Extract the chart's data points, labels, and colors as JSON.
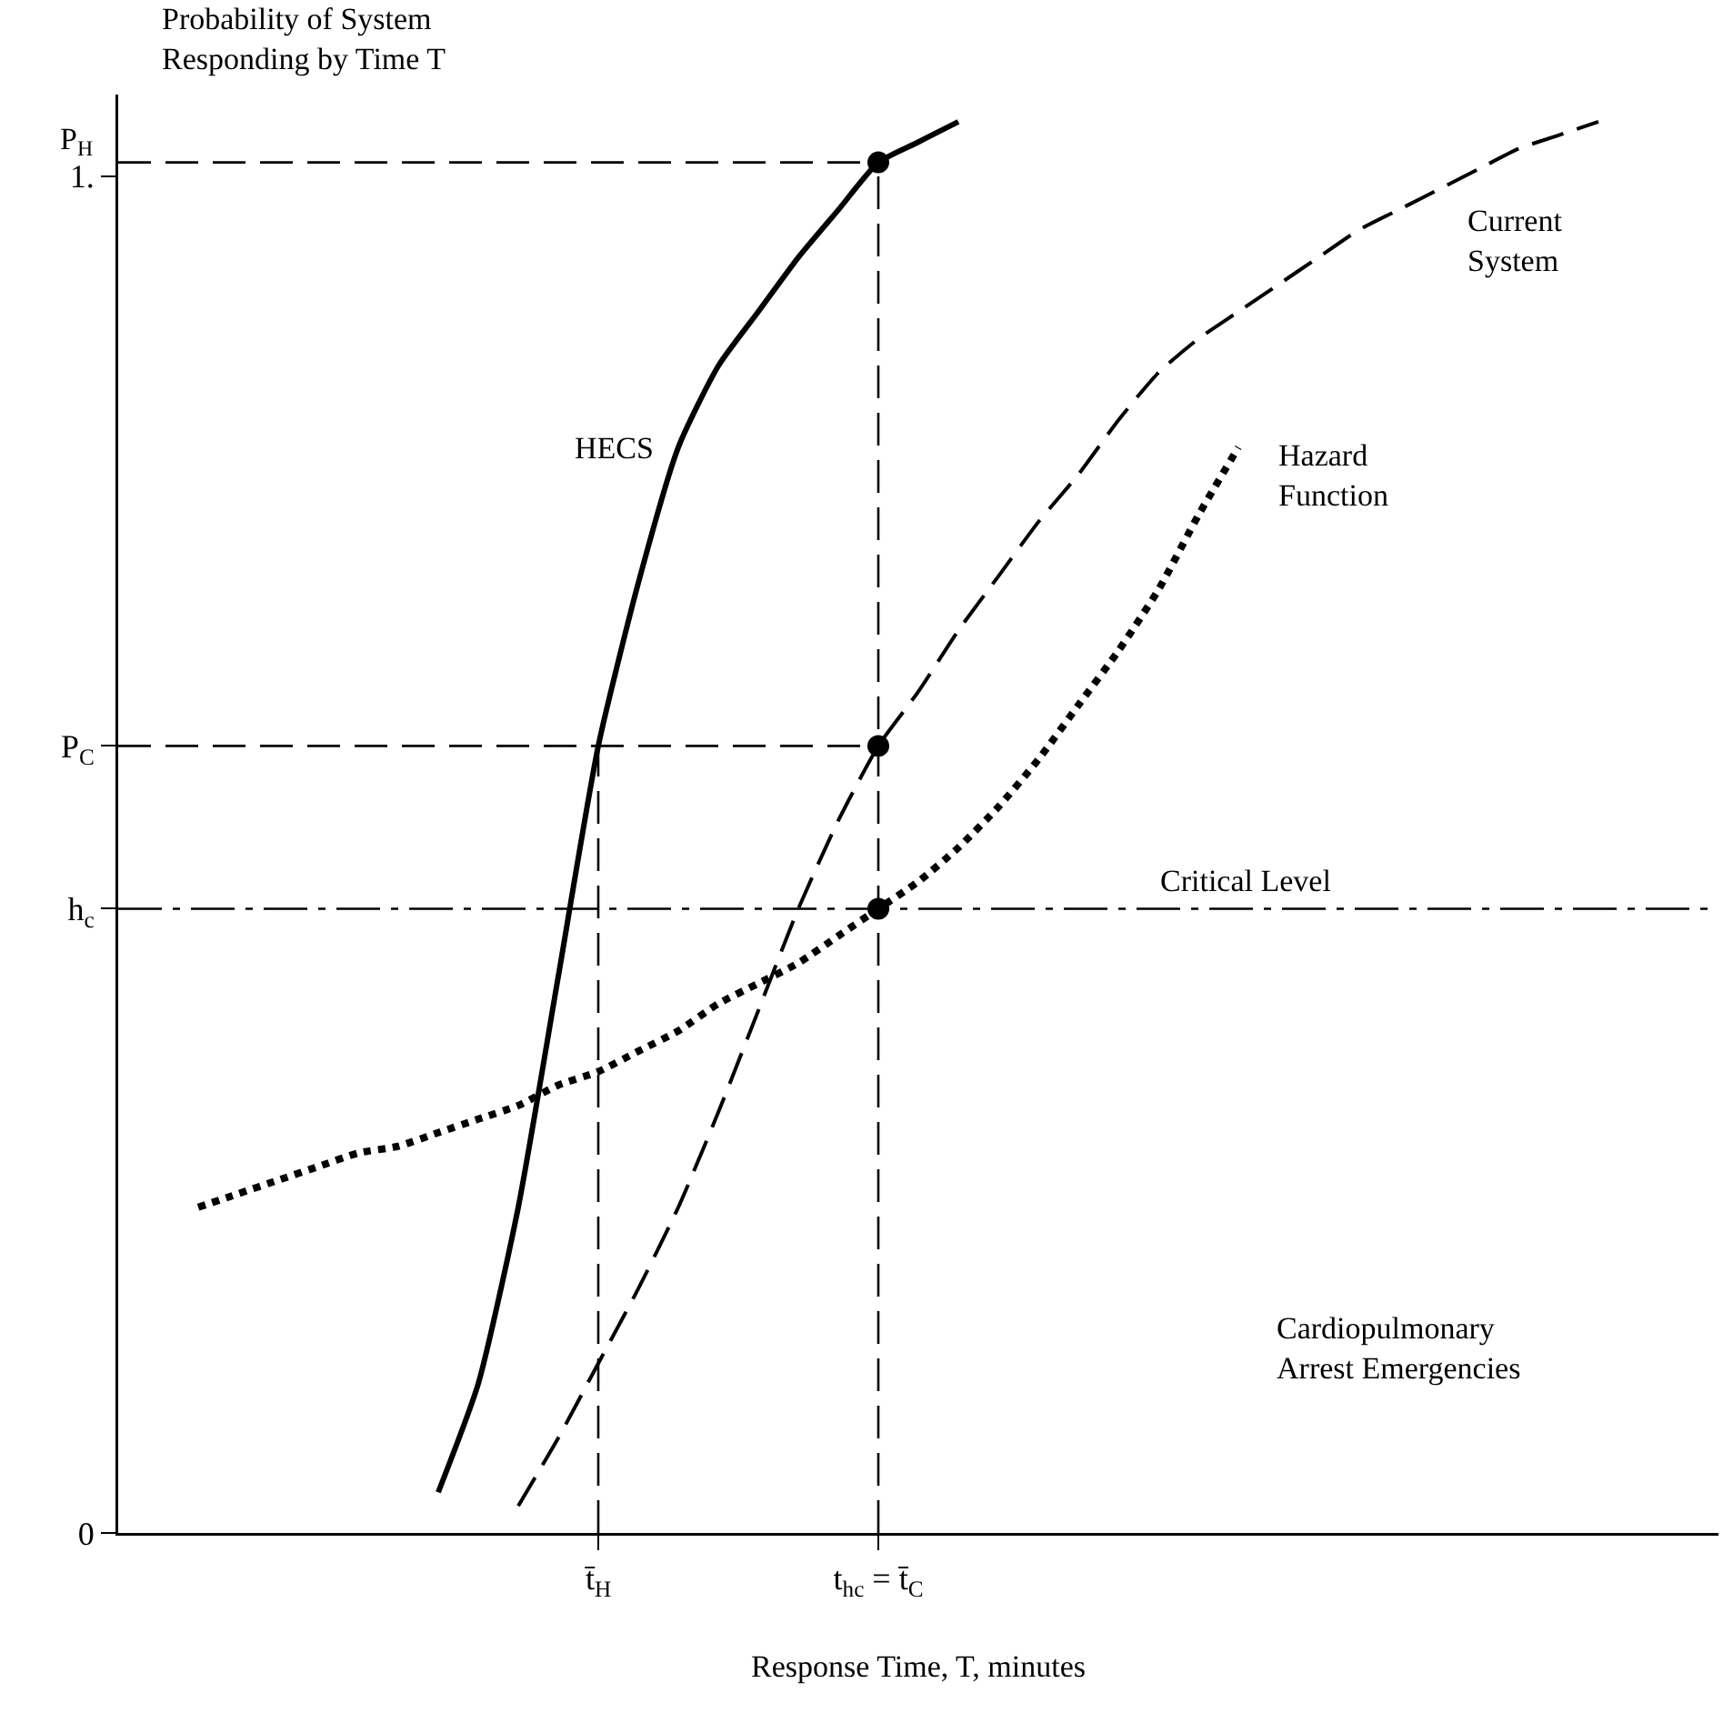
{
  "chart_data": {
    "type": "line",
    "ylabel": "Probability of System\nResponding by Time T",
    "xlabel": "Response Time, T, minutes",
    "categories": [
      null,
      null,
      null,
      null,
      null,
      null,
      null,
      null,
      null,
      null,
      null,
      null,
      "t̄$_{H}$",
      null,
      null,
      null,
      null,
      null,
      null,
      "t$_{hc}$ = t̄$_{C}$",
      null,
      null,
      null,
      null,
      null,
      null,
      null,
      null,
      null,
      null,
      null,
      null,
      null,
      null,
      null,
      null,
      null,
      null,
      null,
      null,
      null
    ],
    "ylim": [
      0,
      1.06
    ],
    "yticks": [
      {
        "value": 0,
        "label": "0"
      },
      {
        "value": 0.46,
        "label": "h$_{c}$"
      },
      {
        "value": 0.58,
        "label": "P$_{C}$"
      },
      {
        "value": 1,
        "label": "1."
      }
    ],
    "grid": false,
    "legend": false,
    "series": [
      {
        "name": "HECS",
        "color": "#000000",
        "line_style": "solid",
        "marker": "none",
        "values": [
          null,
          null,
          null,
          null,
          null,
          null,
          null,
          null,
          0.03,
          0.11,
          0.24,
          0.41,
          0.58,
          0.7,
          0.8,
          0.86,
          0.9,
          0.94,
          0.975,
          1.01,
          1.025,
          1.04,
          null,
          null,
          null,
          null,
          null,
          null,
          null,
          null,
          null,
          null,
          null,
          null,
          null,
          null,
          null,
          null,
          null,
          null,
          null
        ]
      },
      {
        "name": "Current\nSystem",
        "color": "#000000",
        "line_style": "dashed",
        "marker": "none",
        "values": [
          null,
          null,
          null,
          null,
          null,
          null,
          null,
          null,
          null,
          null,
          0.02,
          0.07,
          0.125,
          0.18,
          0.24,
          0.31,
          0.385,
          0.46,
          0.525,
          0.58,
          0.62,
          0.665,
          0.705,
          0.745,
          0.78,
          0.82,
          0.855,
          0.88,
          0.9,
          0.92,
          0.94,
          0.96,
          0.975,
          0.99,
          1.005,
          1.02,
          1.03,
          1.04,
          null,
          null,
          null
        ]
      },
      {
        "name": "Hazard\nFunction",
        "color": "#000000",
        "line_style": "dotted",
        "marker": "none",
        "values": [
          null,
          null,
          0.24,
          0.25,
          0.26,
          0.27,
          0.28,
          0.285,
          0.295,
          0.305,
          0.315,
          0.33,
          0.34,
          0.355,
          0.37,
          0.39,
          0.405,
          0.42,
          0.44,
          0.46,
          0.48,
          0.505,
          0.535,
          0.57,
          0.61,
          0.65,
          0.695,
          0.75,
          0.8,
          null,
          null,
          null,
          null,
          null,
          null,
          null,
          null,
          null,
          null,
          null,
          null
        ]
      },
      {
        "color": "#000000",
        "line_style": "dashed",
        "marker": "none",
        "values": [
          1.01,
          1.01,
          1.01,
          1.01,
          1.01,
          1.01,
          1.01,
          1.01,
          1.01,
          1.01,
          1.01,
          1.01,
          1.01,
          1.01,
          1.01,
          1.01,
          1.01,
          1.01,
          1.01,
          1.01,
          null,
          null,
          null,
          null,
          null,
          null,
          null,
          null,
          null,
          null,
          null,
          null,
          null,
          null,
          null,
          null,
          null,
          null,
          null,
          null,
          null
        ]
      },
      {
        "color": "#000000",
        "line_style": "dashed",
        "marker": "none",
        "values": [
          0.58,
          0.58,
          0.58,
          0.58,
          0.58,
          0.58,
          0.58,
          0.58,
          0.58,
          0.58,
          0.58,
          0.58,
          0.58,
          0.58,
          0.58,
          0.58,
          0.58,
          0.58,
          0.58,
          0.58,
          null,
          null,
          null,
          null,
          null,
          null,
          null,
          null,
          null,
          null,
          null,
          null,
          null,
          null,
          null,
          null,
          null,
          null,
          null,
          null,
          null
        ]
      },
      {
        "color": "#000000",
        "line_style": "dashed",
        "marker": "none",
        "x": [
          "t̄$_{H}$",
          "t̄$_{H}$"
        ],
        "values": [
          0,
          0.58
        ]
      },
      {
        "color": "#000000",
        "line_style": "dashed",
        "marker": "none",
        "x": [
          "t$_{hc}$ = t̄$_{C}$",
          "t$_{hc}$ = t̄$_{C}$"
        ],
        "values": [
          0,
          1.01
        ]
      },
      {
        "type": "scatter",
        "color": "#000000",
        "marker": "circle",
        "x": [
          "t$_{hc}$ = t̄$_{C}$",
          "t$_{hc}$ = t̄$_{C}$",
          "t$_{hc}$ = t̄$_{C}$"
        ],
        "values": [
          1.01,
          0.58,
          0.46
        ]
      }
    ],
    "ref_lines": [
      {
        "axis": "y",
        "value": 0.46,
        "label": "Critical Level",
        "line_style": "dashed",
        "color": "#000000"
      }
    ],
    "annotations": [
      "P$_{H}$",
      "Cardiopulmonary\nArrest Emergencies"
    ]
  }
}
